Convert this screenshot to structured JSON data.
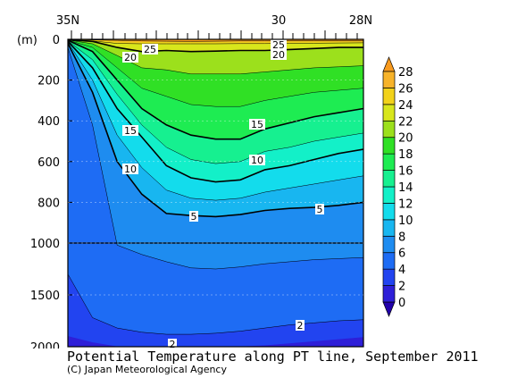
{
  "chart_data": {
    "type": "heatmap",
    "title": "Potential Temperature along PT line, September 2011",
    "credit": "(C) Japan Meteorological Agency",
    "variable": "potential temperature",
    "x_tick_labels": [
      "35N",
      "30",
      "28N"
    ],
    "x_range": [
      "35N",
      "28N"
    ],
    "ylabel": "(m)",
    "y_tick_labels": [
      "0",
      "200",
      "400",
      "600",
      "800",
      "1000",
      "1500",
      "2000"
    ],
    "ylim": [
      0,
      2000
    ],
    "y_scale": "depth, stretched 0–1000 m, compressed 1000–2000 m",
    "colorbar": {
      "levels": [
        0,
        2,
        4,
        6,
        8,
        10,
        12,
        14,
        16,
        18,
        20,
        22,
        24,
        26,
        28
      ],
      "colors": [
        "#2200aa",
        "#2e1fd8",
        "#2244f0",
        "#1e6cf4",
        "#1e8cf0",
        "#18b6f0",
        "#13dcec",
        "#13f0c8",
        "#16f090",
        "#1eec52",
        "#30e025",
        "#9ce01c",
        "#d8e61c",
        "#f2d21a",
        "#f7b32a",
        "#f89a1e"
      ],
      "extend": "both"
    },
    "contour_labels": [
      "25",
      "20",
      "15",
      "10",
      "5",
      "25",
      "20",
      "15",
      "10",
      "5",
      "2",
      "2"
    ],
    "isotherms": [
      {
        "label": "20",
        "depth_m": [
          2,
          10,
          40,
          60,
          55,
          60,
          58,
          55,
          55,
          50,
          45,
          40,
          40
        ]
      },
      {
        "label": "15",
        "depth_m": [
          5,
          60,
          200,
          340,
          420,
          470,
          490,
          490,
          440,
          410,
          380,
          360,
          340
        ]
      },
      {
        "label": "10",
        "depth_m": [
          10,
          140,
          340,
          480,
          620,
          680,
          700,
          690,
          640,
          620,
          590,
          560,
          540
        ]
      },
      {
        "label": "5",
        "depth_m": [
          20,
          260,
          600,
          760,
          855,
          865,
          870,
          860,
          840,
          830,
          825,
          815,
          800
        ]
      }
    ]
  }
}
